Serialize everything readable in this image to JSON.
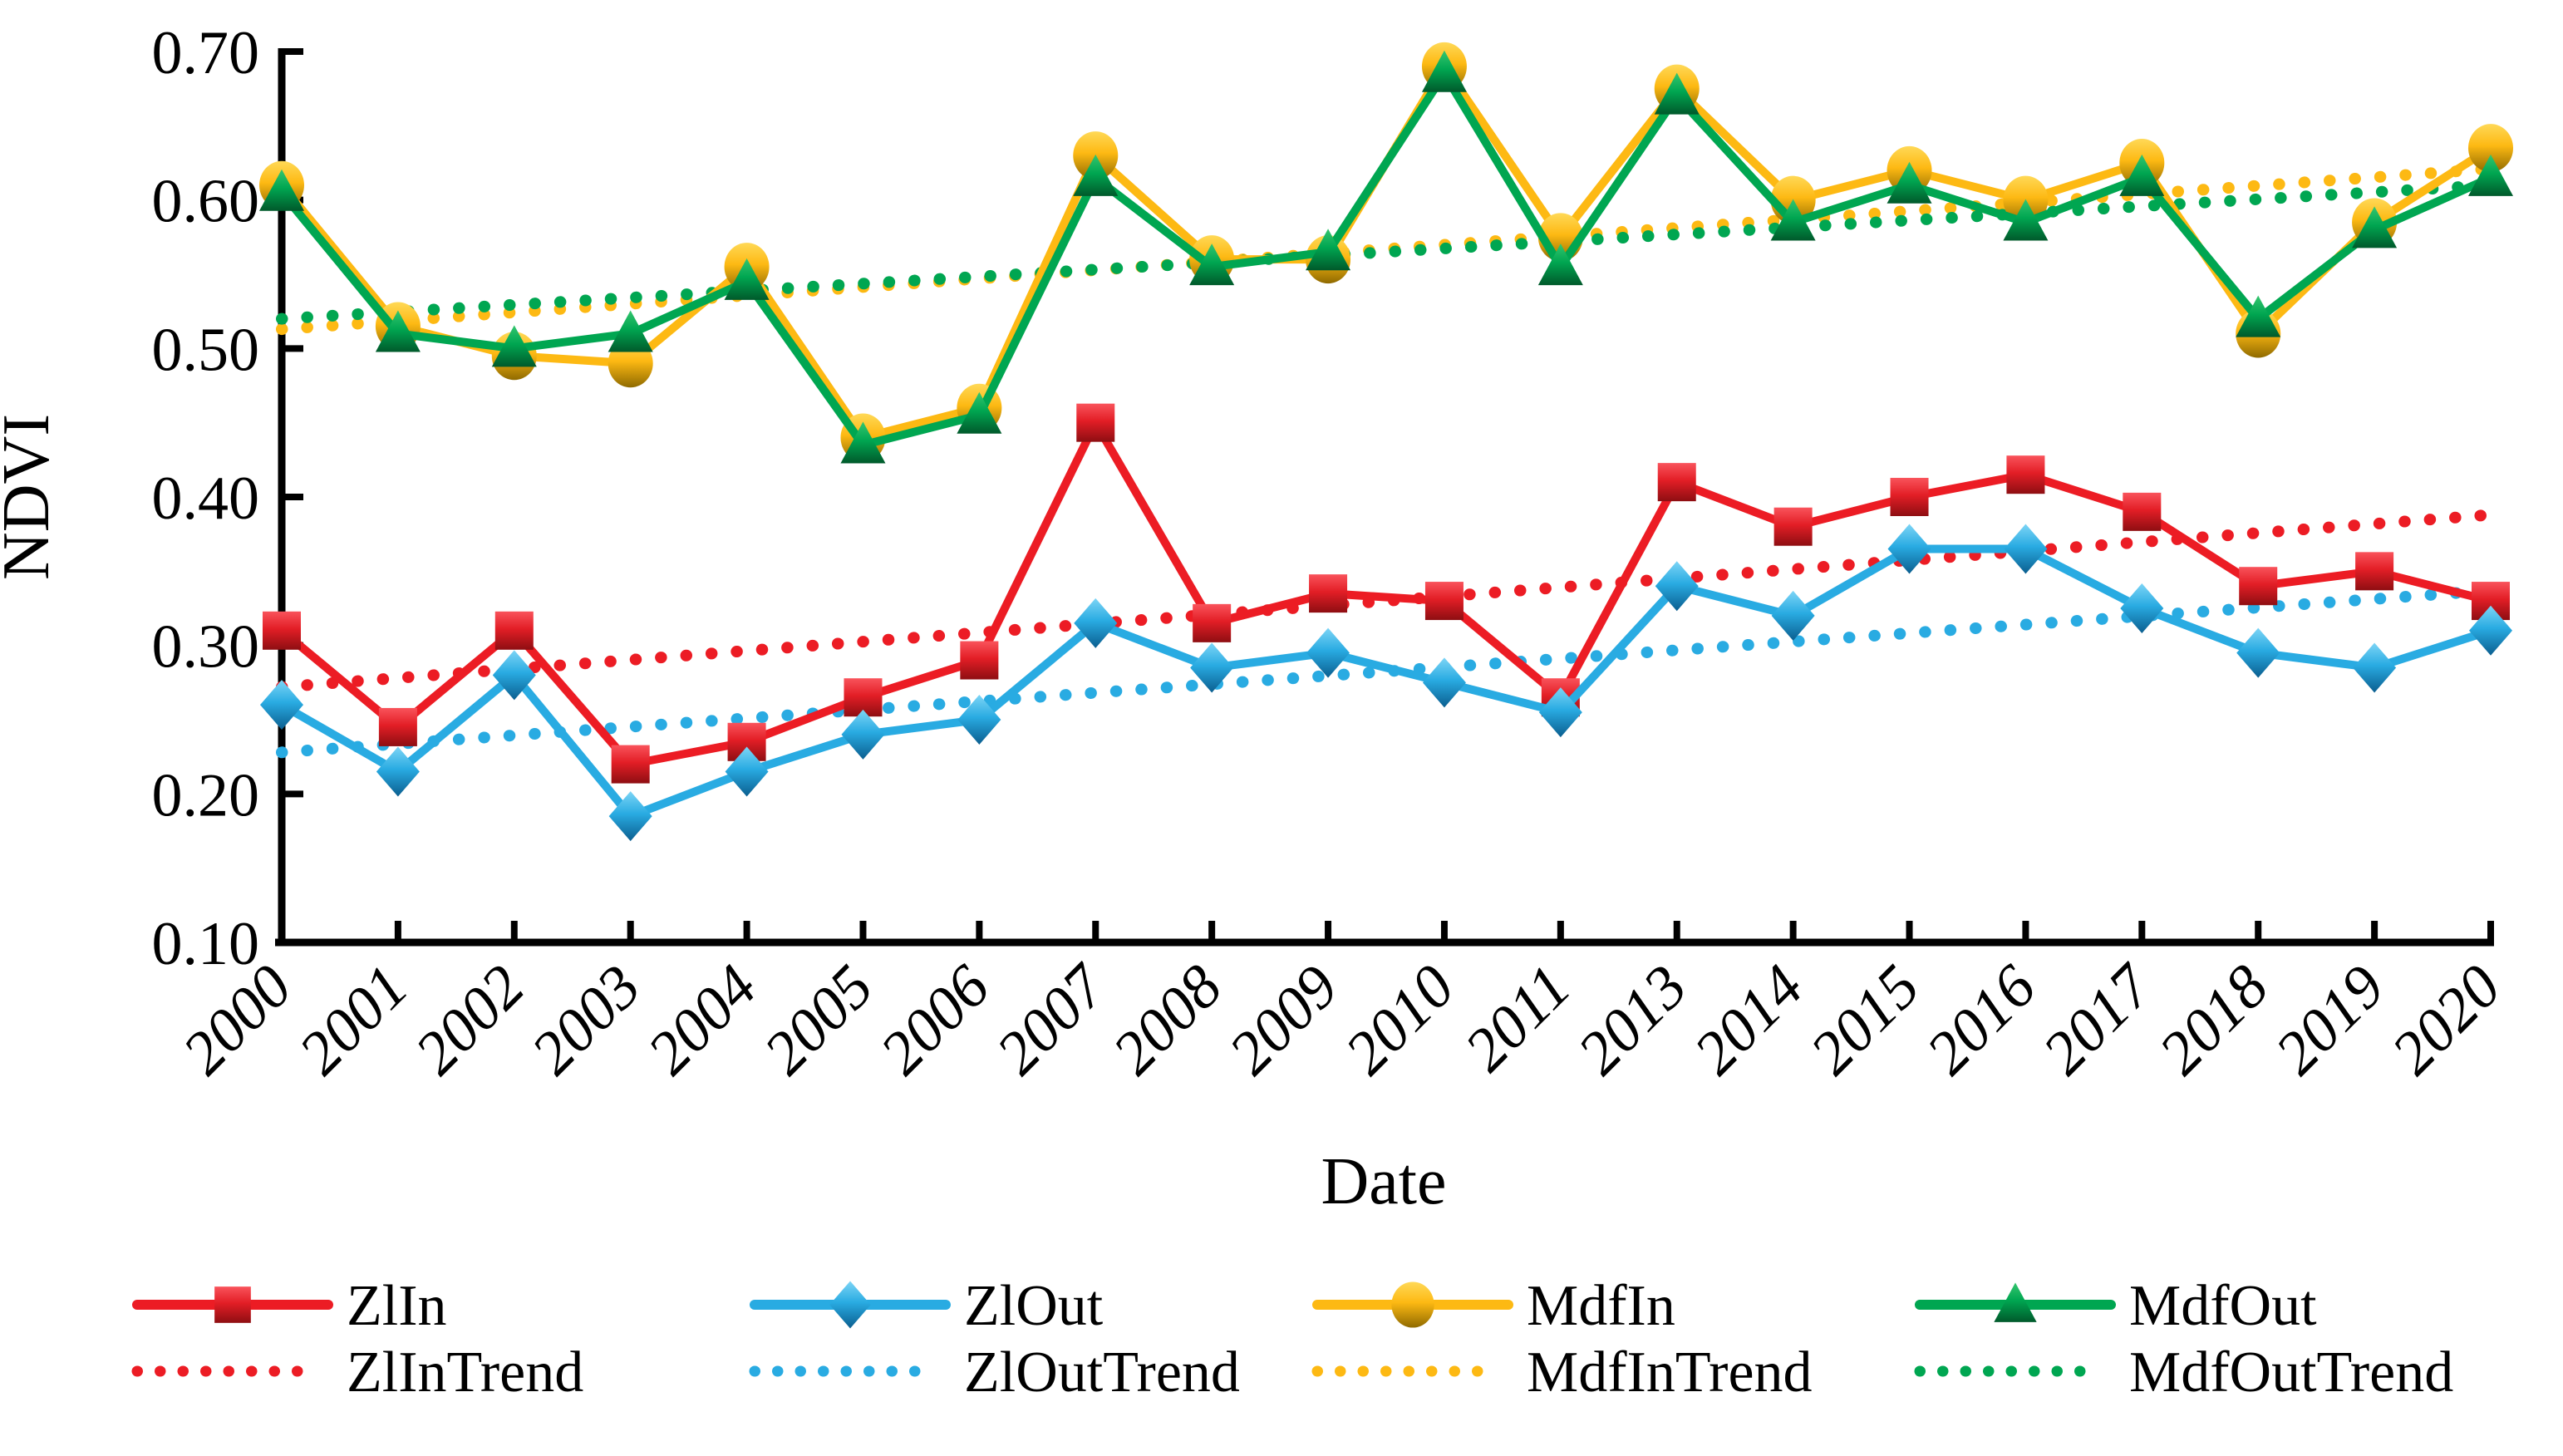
{
  "figure": {
    "ylabel": "NDVI",
    "xlabel": "Date"
  },
  "chart_data": {
    "type": "line",
    "title": "",
    "xlabel": "Date",
    "ylabel": "NDVI",
    "ylim": [
      0.1,
      0.7
    ],
    "grid": false,
    "legend_position": "bottom",
    "categories": [
      "2000",
      "2001",
      "2002",
      "2003",
      "2004",
      "2005",
      "2006",
      "2007",
      "2008",
      "2009",
      "2010",
      "2011",
      "2013",
      "2014",
      "2015",
      "2016",
      "2017",
      "2018",
      "2019",
      "2020"
    ],
    "ytick_values": [
      0.1,
      0.2,
      0.3,
      0.4,
      0.5,
      0.6,
      0.7
    ],
    "ytick_labels": [
      "0.10",
      "0.20",
      "0.30",
      "0.40",
      "0.50",
      "0.60",
      "0.70"
    ],
    "series": [
      {
        "name": "MdfIn",
        "color": "#FDB913",
        "marker": "circle",
        "values": [
          0.61,
          0.515,
          0.495,
          0.49,
          0.555,
          0.44,
          0.46,
          0.63,
          0.56,
          0.56,
          0.69,
          0.575,
          0.675,
          0.6,
          0.62,
          0.6,
          0.625,
          0.51,
          0.585,
          0.635
        ]
      },
      {
        "name": "MdfOut",
        "color": "#00A651",
        "marker": "triangle",
        "values": [
          0.605,
          0.51,
          0.5,
          0.51,
          0.545,
          0.435,
          0.455,
          0.615,
          0.555,
          0.565,
          0.685,
          0.555,
          0.67,
          0.585,
          0.61,
          0.585,
          0.615,
          0.52,
          0.58,
          0.615
        ]
      },
      {
        "name": "ZlIn",
        "color": "#EC1C24",
        "marker": "square",
        "values": [
          0.31,
          0.245,
          0.31,
          0.22,
          0.235,
          0.265,
          0.29,
          0.45,
          0.315,
          0.335,
          0.33,
          0.265,
          0.41,
          0.38,
          0.4,
          0.415,
          0.39,
          0.34,
          0.35,
          0.33
        ]
      },
      {
        "name": "ZlOut",
        "color": "#29ABE2",
        "marker": "diamond",
        "values": [
          0.26,
          0.215,
          0.28,
          0.185,
          0.215,
          0.24,
          0.25,
          0.315,
          0.285,
          0.295,
          0.275,
          0.255,
          0.34,
          0.32,
          0.365,
          0.365,
          0.325,
          0.295,
          0.285,
          0.31
        ]
      }
    ],
    "trendlines": [
      {
        "name": "MdfInTrend",
        "color": "#FDB913",
        "start": 0.513,
        "end": 0.621
      },
      {
        "name": "MdfOutTrend",
        "color": "#00A651",
        "start": 0.52,
        "end": 0.61
      },
      {
        "name": "ZlInTrend",
        "color": "#EC1C24",
        "start": 0.272,
        "end": 0.388
      },
      {
        "name": "ZlOutTrend",
        "color": "#29ABE2",
        "start": 0.228,
        "end": 0.337
      }
    ],
    "legend_row1": [
      "ZlIn",
      "ZlOut",
      "MdfIn",
      "MdfOut"
    ],
    "legend_row2": [
      "ZlInTrend",
      "ZlOutTrend",
      "MdfInTrend",
      "MdfOutTrend"
    ]
  }
}
